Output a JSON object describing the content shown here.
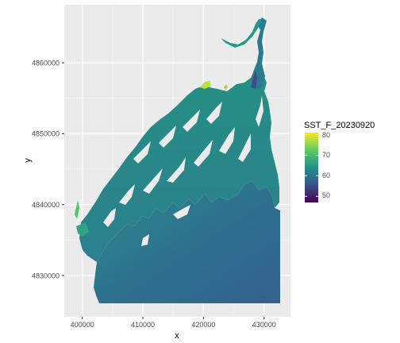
{
  "chart_data": {
    "type": "heatmap",
    "title": "",
    "xlabel": "x",
    "ylabel": "y",
    "xlim": [
      397000,
      333000
    ],
    "ylim": [
      4824000,
      4867500
    ],
    "x_ticks": [
      400000,
      410000,
      420000,
      430000
    ],
    "x_tick_labels": [
      "400000",
      "410000",
      "420000",
      "430000"
    ],
    "y_ticks": [
      4830000,
      4840000,
      4850000,
      4860000
    ],
    "y_tick_labels": [
      "4830000",
      "4840000",
      "4850000",
      "4860000"
    ],
    "grid": true,
    "legend": {
      "title": "SST_F_20230920",
      "placement": "right",
      "range": [
        47,
        81
      ],
      "breaks": [
        50,
        60,
        70,
        80
      ],
      "break_labels": [
        "50",
        "60",
        "70",
        "80"
      ],
      "colormap": "viridis"
    },
    "colors": {
      "panel_background": "#ebebeb",
      "grid_major": "#ffffff",
      "viridis": [
        "#440154",
        "#3b528b",
        "#21918c",
        "#5ec962",
        "#fde725"
      ]
    }
  }
}
